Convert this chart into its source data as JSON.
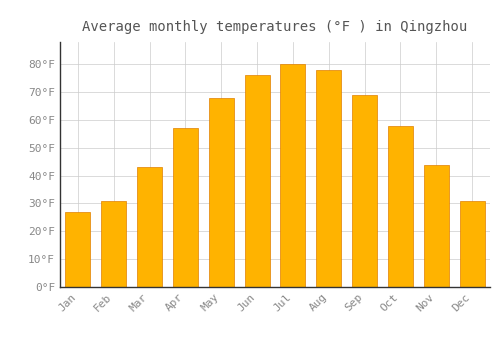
{
  "title": "Average monthly temperatures (°F ) in Qingzhou",
  "months": [
    "Jan",
    "Feb",
    "Mar",
    "Apr",
    "May",
    "Jun",
    "Jul",
    "Aug",
    "Sep",
    "Oct",
    "Nov",
    "Dec"
  ],
  "values": [
    27,
    31,
    43,
    57,
    68,
    76,
    80,
    78,
    69,
    58,
    44,
    31
  ],
  "bar_color": "#FFB300",
  "bar_edge_color": "#E08000",
  "background_color": "#FFFFFF",
  "grid_color": "#CCCCCC",
  "text_color": "#888888",
  "title_color": "#555555",
  "ylim": [
    0,
    88
  ],
  "yticks": [
    0,
    10,
    20,
    30,
    40,
    50,
    60,
    70,
    80
  ],
  "ytick_labels": [
    "0°F",
    "10°F",
    "20°F",
    "30°F",
    "40°F",
    "50°F",
    "60°F",
    "70°F",
    "80°F"
  ],
  "title_fontsize": 10,
  "tick_fontsize": 8,
  "bar_width": 0.7
}
